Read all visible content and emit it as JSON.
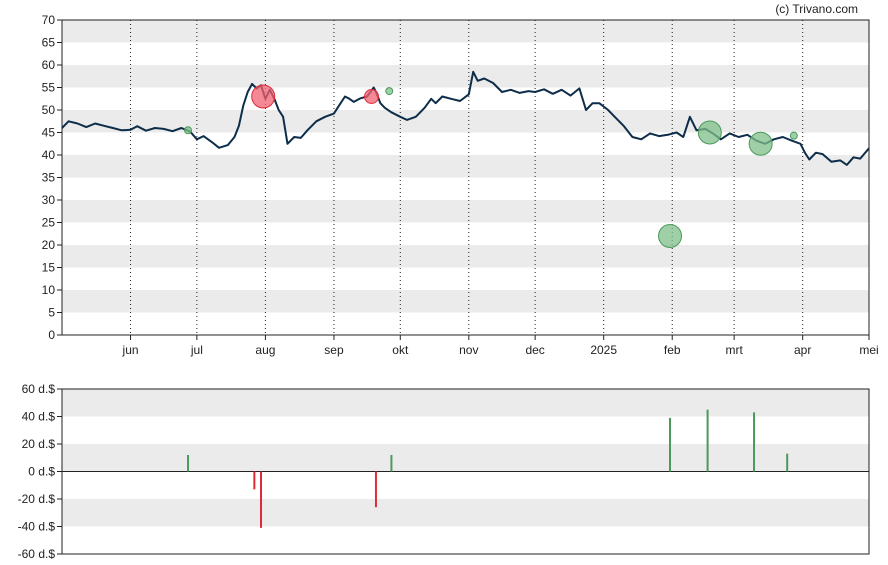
{
  "copyright": "(c) Trivano.com",
  "colors": {
    "price_line": "#0d2d4a",
    "band": "#ebebeb",
    "buy": "#4a9a5a",
    "sell": "#e02a3a",
    "buy_fill": "#7fbf8a",
    "sell_fill": "#f06070"
  },
  "chart_data": [
    {
      "type": "line",
      "title": "",
      "ylim": [
        0,
        70
      ],
      "y_ticks": [
        "0",
        "5",
        "10",
        "15",
        "20",
        "25",
        "30",
        "35",
        "40",
        "45",
        "50",
        "55",
        "60",
        "65",
        "70"
      ],
      "x_range": [
        "2024-05-01",
        "2025-05-01"
      ],
      "x_ticks": [
        {
          "date": "2024-06-01",
          "label": "jun"
        },
        {
          "date": "2024-07-01",
          "label": "jul"
        },
        {
          "date": "2024-08-01",
          "label": "aug"
        },
        {
          "date": "2024-09-01",
          "label": "sep"
        },
        {
          "date": "2024-10-01",
          "label": "okt"
        },
        {
          "date": "2024-11-01",
          "label": "nov"
        },
        {
          "date": "2024-12-01",
          "label": "dec"
        },
        {
          "date": "2025-01-01",
          "label": "2025"
        },
        {
          "date": "2025-02-01",
          "label": "feb"
        },
        {
          "date": "2025-03-01",
          "label": "mrt"
        },
        {
          "date": "2025-04-01",
          "label": "apr"
        },
        {
          "date": "2025-05-01",
          "label": "mei"
        }
      ],
      "grid": "alternating horizontal bands, dotted vertical month lines",
      "series": [
        {
          "points": [
            [
              "2024-05-01",
              46.0
            ],
            [
              "2024-05-04",
              47.5
            ],
            [
              "2024-05-08",
              47.0
            ],
            [
              "2024-05-12",
              46.2
            ],
            [
              "2024-05-16",
              47.0
            ],
            [
              "2024-05-20",
              46.5
            ],
            [
              "2024-05-24",
              46.0
            ],
            [
              "2024-05-28",
              45.5
            ],
            [
              "2024-06-01",
              45.6
            ],
            [
              "2024-06-04",
              46.4
            ],
            [
              "2024-06-08",
              45.4
            ],
            [
              "2024-06-12",
              46.0
            ],
            [
              "2024-06-16",
              45.8
            ],
            [
              "2024-06-20",
              45.3
            ],
            [
              "2024-06-24",
              46.0
            ],
            [
              "2024-06-28",
              45.2
            ],
            [
              "2024-07-01",
              43.5
            ],
            [
              "2024-07-04",
              44.2
            ],
            [
              "2024-07-08",
              42.8
            ],
            [
              "2024-07-11",
              41.6
            ],
            [
              "2024-07-15",
              42.2
            ],
            [
              "2024-07-18",
              44.0
            ],
            [
              "2024-07-20",
              46.5
            ],
            [
              "2024-07-22",
              51.0
            ],
            [
              "2024-07-24",
              54.0
            ],
            [
              "2024-07-26",
              55.8
            ],
            [
              "2024-07-28",
              54.8
            ],
            [
              "2024-07-30",
              55.5
            ],
            [
              "2024-08-01",
              52.5
            ],
            [
              "2024-08-03",
              54.5
            ],
            [
              "2024-08-05",
              52.5
            ],
            [
              "2024-08-07",
              50.0
            ],
            [
              "2024-08-09",
              48.5
            ],
            [
              "2024-08-11",
              42.5
            ],
            [
              "2024-08-14",
              44.0
            ],
            [
              "2024-08-17",
              43.8
            ],
            [
              "2024-08-20",
              45.5
            ],
            [
              "2024-08-24",
              47.5
            ],
            [
              "2024-08-28",
              48.5
            ],
            [
              "2024-09-01",
              49.2
            ],
            [
              "2024-09-04",
              51.5
            ],
            [
              "2024-09-06",
              53.0
            ],
            [
              "2024-09-08",
              52.5
            ],
            [
              "2024-09-10",
              51.8
            ],
            [
              "2024-09-13",
              52.6
            ],
            [
              "2024-09-16",
              53.0
            ],
            [
              "2024-09-19",
              55.0
            ],
            [
              "2024-09-20",
              54.0
            ],
            [
              "2024-09-22",
              51.5
            ],
            [
              "2024-09-24",
              50.5
            ],
            [
              "2024-09-27",
              49.5
            ],
            [
              "2024-10-01",
              48.5
            ],
            [
              "2024-10-04",
              47.8
            ],
            [
              "2024-10-08",
              48.5
            ],
            [
              "2024-10-12",
              50.5
            ],
            [
              "2024-10-15",
              52.5
            ],
            [
              "2024-10-17",
              51.5
            ],
            [
              "2024-10-20",
              53.0
            ],
            [
              "2024-10-24",
              52.5
            ],
            [
              "2024-10-28",
              52.0
            ],
            [
              "2024-11-01",
              53.5
            ],
            [
              "2024-11-03",
              58.5
            ],
            [
              "2024-11-05",
              56.5
            ],
            [
              "2024-11-08",
              57.0
            ],
            [
              "2024-11-12",
              56.0
            ],
            [
              "2024-11-16",
              54.0
            ],
            [
              "2024-11-20",
              54.5
            ],
            [
              "2024-11-24",
              53.8
            ],
            [
              "2024-11-28",
              54.2
            ],
            [
              "2024-12-01",
              54.0
            ],
            [
              "2024-12-05",
              54.6
            ],
            [
              "2024-12-09",
              53.6
            ],
            [
              "2024-12-13",
              54.5
            ],
            [
              "2024-12-17",
              53.2
            ],
            [
              "2024-12-21",
              54.8
            ],
            [
              "2024-12-24",
              50.0
            ],
            [
              "2024-12-27",
              51.5
            ],
            [
              "2024-12-30",
              51.5
            ],
            [
              "2025-01-03",
              50.0
            ],
            [
              "2025-01-06",
              48.5
            ],
            [
              "2025-01-10",
              46.5
            ],
            [
              "2025-01-14",
              44.0
            ],
            [
              "2025-01-18",
              43.5
            ],
            [
              "2025-01-22",
              44.8
            ],
            [
              "2025-01-26",
              44.2
            ],
            [
              "2025-01-30",
              44.5
            ],
            [
              "2025-02-03",
              45.0
            ],
            [
              "2025-02-06",
              44.0
            ],
            [
              "2025-02-09",
              48.5
            ],
            [
              "2025-02-12",
              45.5
            ],
            [
              "2025-02-16",
              45.8
            ],
            [
              "2025-02-20",
              44.6
            ],
            [
              "2025-02-23",
              43.5
            ],
            [
              "2025-02-27",
              44.8
            ],
            [
              "2025-03-03",
              44.0
            ],
            [
              "2025-03-07",
              44.5
            ],
            [
              "2025-03-11",
              43.2
            ],
            [
              "2025-03-15",
              42.5
            ],
            [
              "2025-03-19",
              43.5
            ],
            [
              "2025-03-23",
              44.0
            ],
            [
              "2025-03-27",
              43.2
            ],
            [
              "2025-03-31",
              42.5
            ],
            [
              "2025-04-02",
              40.5
            ],
            [
              "2025-04-04",
              39.0
            ],
            [
              "2025-04-07",
              40.5
            ],
            [
              "2025-04-10",
              40.2
            ],
            [
              "2025-04-14",
              38.5
            ],
            [
              "2025-04-18",
              38.8
            ],
            [
              "2025-04-21",
              37.8
            ],
            [
              "2025-04-24",
              39.5
            ],
            [
              "2025-04-27",
              39.2
            ],
            [
              "2025-05-01",
              41.5
            ]
          ]
        }
      ],
      "markers": [
        {
          "date": "2024-06-27",
          "price": 45.5,
          "side": "buy",
          "size": "small"
        },
        {
          "date": "2024-07-31",
          "price": 53.0,
          "side": "sell",
          "size": "large"
        },
        {
          "date": "2024-09-18",
          "price": 53.0,
          "side": "sell",
          "size": "medium"
        },
        {
          "date": "2024-09-26",
          "price": 54.2,
          "side": "buy",
          "size": "small"
        },
        {
          "date": "2025-01-31",
          "price": 22.0,
          "side": "buy",
          "size": "large"
        },
        {
          "date": "2025-02-18",
          "price": 45.0,
          "side": "buy",
          "size": "large"
        },
        {
          "date": "2025-03-13",
          "price": 42.5,
          "side": "buy",
          "size": "large"
        },
        {
          "date": "2025-03-28",
          "price": 44.3,
          "side": "buy",
          "size": "small"
        }
      ]
    },
    {
      "type": "bar",
      "title": "",
      "ylim": [
        -60,
        60
      ],
      "y_ticks": [
        "60 d.$",
        "40 d.$",
        "20 d.$",
        "0 d.$",
        "-20 d.$",
        "-40 d.$",
        "-60 d.$"
      ],
      "x_range": [
        "2024-05-01",
        "2025-05-01"
      ],
      "grid": "alternating horizontal bands",
      "bars": [
        {
          "date": "2024-06-27",
          "value": 12
        },
        {
          "date": "2024-07-27",
          "value": -13
        },
        {
          "date": "2024-07-30",
          "value": -41
        },
        {
          "date": "2024-09-20",
          "value": -26
        },
        {
          "date": "2024-09-27",
          "value": 12
        },
        {
          "date": "2025-01-31",
          "value": 39
        },
        {
          "date": "2025-02-17",
          "value": 45
        },
        {
          "date": "2025-03-10",
          "value": 43
        },
        {
          "date": "2025-03-25",
          "value": 13
        }
      ]
    }
  ]
}
